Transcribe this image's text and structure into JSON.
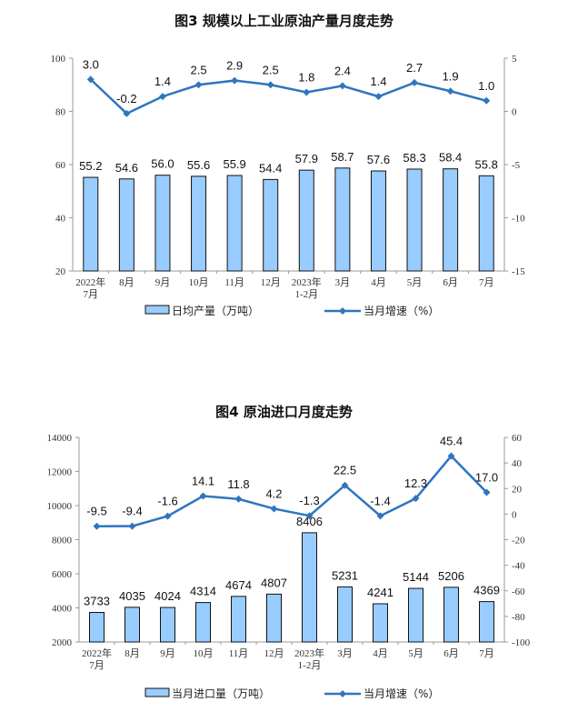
{
  "chart_data": [
    {
      "type": "bar+line",
      "title": "图3  规模以上工业原油产量月度走势",
      "categories": [
        [
          "2022年",
          "7月"
        ],
        [
          "8月"
        ],
        [
          "9月"
        ],
        [
          "10月"
        ],
        [
          "11月"
        ],
        [
          "12月"
        ],
        [
          "2023年",
          "1-2月"
        ],
        [
          "3月"
        ],
        [
          "4月"
        ],
        [
          "5月"
        ],
        [
          "6月"
        ],
        [
          "7月"
        ]
      ],
      "series": [
        {
          "name": "日均产量（万吨）",
          "kind": "bar",
          "axis": "left",
          "values": [
            55.2,
            54.6,
            56.0,
            55.6,
            55.9,
            54.4,
            57.9,
            58.7,
            57.6,
            58.3,
            58.4,
            55.8
          ],
          "labels": [
            "55.2",
            "54.6",
            "56.0",
            "55.6",
            "55.9",
            "54.4",
            "57.9",
            "58.7",
            "57.6",
            "58.3",
            "58.4",
            "55.8"
          ]
        },
        {
          "name": "当月增速（%）",
          "kind": "line",
          "axis": "right",
          "values": [
            3.0,
            -0.2,
            1.4,
            2.5,
            2.9,
            2.5,
            1.8,
            2.4,
            1.4,
            2.7,
            1.9,
            1.0
          ],
          "labels": [
            "3.0",
            "-0.2",
            "1.4",
            "2.5",
            "2.9",
            "2.5",
            "1.8",
            "2.4",
            "1.4",
            "2.7",
            "1.9",
            "1.0"
          ]
        }
      ],
      "ylim_left": [
        20,
        100
      ],
      "yticks_left": [
        "20",
        "40",
        "60",
        "80",
        "100"
      ],
      "ylim_right": [
        -15,
        5
      ],
      "yticks_right": [
        "-15",
        "-10",
        "-5",
        "0",
        "5"
      ],
      "grid": false,
      "legend": "bottom",
      "colors": {
        "bar": "#99CCFF",
        "bar_edge": "#111111",
        "line": "#2E75C0"
      }
    },
    {
      "type": "bar+line",
      "title": "图4  原油进口月度走势",
      "categories": [
        [
          "2022年",
          "7月"
        ],
        [
          "8月"
        ],
        [
          "9月"
        ],
        [
          "10月"
        ],
        [
          "11月"
        ],
        [
          "12月"
        ],
        [
          "2023年",
          "1-2月"
        ],
        [
          "3月"
        ],
        [
          "4月"
        ],
        [
          "5月"
        ],
        [
          "6月"
        ],
        [
          "7月"
        ]
      ],
      "series": [
        {
          "name": "当月进口量（万吨）",
          "kind": "bar",
          "axis": "left",
          "values": [
            3733,
            4035,
            4024,
            4314,
            4674,
            4807,
            8406,
            5231,
            4241,
            5144,
            5206,
            4369
          ],
          "labels": [
            "3733",
            "4035",
            "4024",
            "4314",
            "4674",
            "4807",
            "8406",
            "5231",
            "4241",
            "5144",
            "5206",
            "4369"
          ]
        },
        {
          "name": "当月增速（%）",
          "kind": "line",
          "axis": "right",
          "values": [
            -9.5,
            -9.4,
            -1.6,
            14.1,
            11.8,
            4.2,
            -1.3,
            22.5,
            -1.4,
            12.3,
            45.4,
            17.0
          ],
          "labels": [
            "-9.5",
            "-9.4",
            "-1.6",
            "14.1",
            "11.8",
            "4.2",
            "-1.3",
            "22.5",
            "-1.4",
            "12.3",
            "45.4",
            "17.0"
          ]
        }
      ],
      "ylim_left": [
        2000,
        14000
      ],
      "yticks_left": [
        "2000",
        "4000",
        "6000",
        "8000",
        "10000",
        "12000",
        "14000"
      ],
      "ylim_right": [
        -100,
        60
      ],
      "yticks_right": [
        "-100",
        "-80",
        "-60",
        "-40",
        "-20",
        "0",
        "20",
        "40",
        "60"
      ],
      "grid": false,
      "legend": "bottom",
      "colors": {
        "bar": "#99CCFF",
        "bar_edge": "#111111",
        "line": "#2E75C0"
      }
    }
  ]
}
